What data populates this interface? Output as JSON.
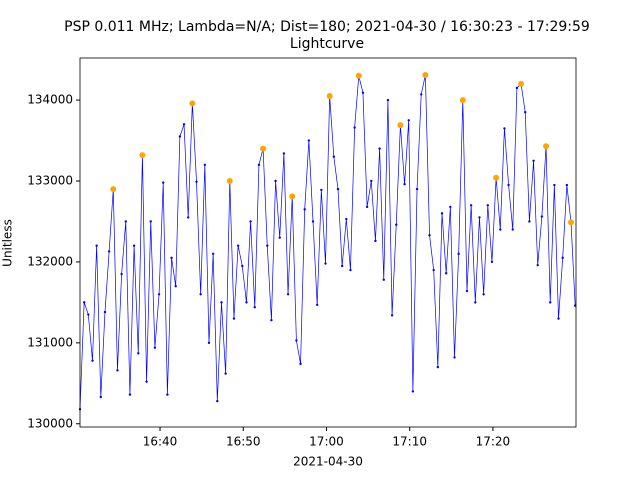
{
  "chart_data": {
    "type": "line",
    "title": "PSP 0.011 MHz; Lambda=N/A; Dist=180; 2021-04-30 / 16:30:23 - 17:29:59",
    "subtitle": "Lightcurve",
    "x_label": "2021-04-30",
    "y_label": "Unitless",
    "color": "#0000ff",
    "x": [
      "16:30:23",
      "16:30:53",
      "16:31:23",
      "16:31:53",
      "16:32:23",
      "16:32:53",
      "16:33:23",
      "16:33:53",
      "16:34:23",
      "16:34:53",
      "16:35:23",
      "16:35:53",
      "16:36:23",
      "16:36:53",
      "16:37:23",
      "16:37:53",
      "16:38:23",
      "16:38:53",
      "16:39:23",
      "16:39:53",
      "16:40:23",
      "16:40:53",
      "16:41:23",
      "16:41:53",
      "16:42:23",
      "16:42:53",
      "16:43:23",
      "16:43:53",
      "16:44:23",
      "16:44:53",
      "16:45:23",
      "16:45:53",
      "16:46:23",
      "16:46:53",
      "16:47:23",
      "16:47:53",
      "16:48:23",
      "16:48:53",
      "16:49:23",
      "16:49:53",
      "16:50:23",
      "16:50:53",
      "16:51:23",
      "16:51:53",
      "16:52:23",
      "16:52:53",
      "16:53:23",
      "16:53:53",
      "16:54:23",
      "16:54:53",
      "16:55:23",
      "16:55:53",
      "16:56:23",
      "16:56:53",
      "16:57:23",
      "16:57:53",
      "16:58:23",
      "16:58:53",
      "16:59:23",
      "16:59:53",
      "17:00:23",
      "17:00:53",
      "17:01:23",
      "17:01:53",
      "17:02:23",
      "17:02:53",
      "17:03:23",
      "17:03:53",
      "17:04:23",
      "17:04:53",
      "17:05:23",
      "17:05:53",
      "17:06:23",
      "17:06:53",
      "17:07:23",
      "17:07:53",
      "17:08:23",
      "17:08:53",
      "17:09:23",
      "17:09:53",
      "17:10:23",
      "17:10:53",
      "17:11:23",
      "17:11:53",
      "17:12:23",
      "17:12:53",
      "17:13:23",
      "17:13:53",
      "17:14:23",
      "17:14:53",
      "17:15:23",
      "17:15:53",
      "17:16:23",
      "17:16:53",
      "17:17:23",
      "17:17:53",
      "17:18:23",
      "17:18:53",
      "17:19:23",
      "17:19:53",
      "17:20:23",
      "17:20:53",
      "17:21:23",
      "17:21:53",
      "17:22:23",
      "17:22:53",
      "17:23:23",
      "17:23:53",
      "17:24:23",
      "17:24:53",
      "17:25:23",
      "17:25:53",
      "17:26:23",
      "17:26:53",
      "17:27:23",
      "17:27:53",
      "17:28:23",
      "17:28:53",
      "17:29:23",
      "17:29:53"
    ],
    "values": [
      130180,
      131500,
      131350,
      130780,
      132200,
      130330,
      131380,
      132130,
      132900,
      130660,
      131850,
      132500,
      130360,
      132200,
      130870,
      133320,
      130520,
      132500,
      130940,
      131600,
      132980,
      130360,
      132050,
      131700,
      133550,
      133700,
      132550,
      133960,
      132990,
      131600,
      133200,
      131000,
      132100,
      130280,
      131500,
      130620,
      133000,
      131300,
      132200,
      131950,
      131500,
      132500,
      131440,
      133200,
      133400,
      132200,
      131280,
      133000,
      132300,
      133340,
      131600,
      132810,
      131030,
      130740,
      132650,
      133500,
      132500,
      131470,
      132890,
      131980,
      134050,
      133300,
      132900,
      131950,
      132530,
      131900,
      133660,
      134300,
      134090,
      132680,
      133000,
      132260,
      133400,
      131780,
      134000,
      131340,
      132460,
      133690,
      132960,
      133750,
      130400,
      132900,
      134070,
      134310,
      132330,
      131900,
      130700,
      132600,
      131860,
      132680,
      130820,
      132100,
      134000,
      131640,
      132700,
      131500,
      132550,
      131600,
      132700,
      132000,
      133040,
      132400,
      133650,
      132950,
      132400,
      134150,
      134200,
      133850,
      132500,
      133250,
      131960,
      132560,
      133430,
      131500,
      132950,
      131300,
      132050,
      132950,
      132490,
      131460
    ],
    "peaks": {
      "color": "#ffa500",
      "x": [
        "16:34:23",
        "16:37:53",
        "16:43:53",
        "16:48:23",
        "16:52:23",
        "16:55:53",
        "17:00:23",
        "17:03:53",
        "17:08:53",
        "17:11:53",
        "17:16:23",
        "17:20:23",
        "17:23:23",
        "17:26:23",
        "17:29:23"
      ],
      "values": [
        132900,
        133320,
        133960,
        133000,
        133400,
        132810,
        134050,
        134300,
        133690,
        134310,
        134000,
        133040,
        134200,
        133430,
        132490
      ]
    },
    "xlim": [
      "16:30:23",
      "17:29:59"
    ],
    "xticks": [
      "16:40",
      "16:50",
      "17:00",
      "17:10",
      "17:20"
    ],
    "ylim": [
      129960,
      134520
    ],
    "yticks": [
      130000,
      131000,
      132000,
      133000,
      134000
    ]
  }
}
